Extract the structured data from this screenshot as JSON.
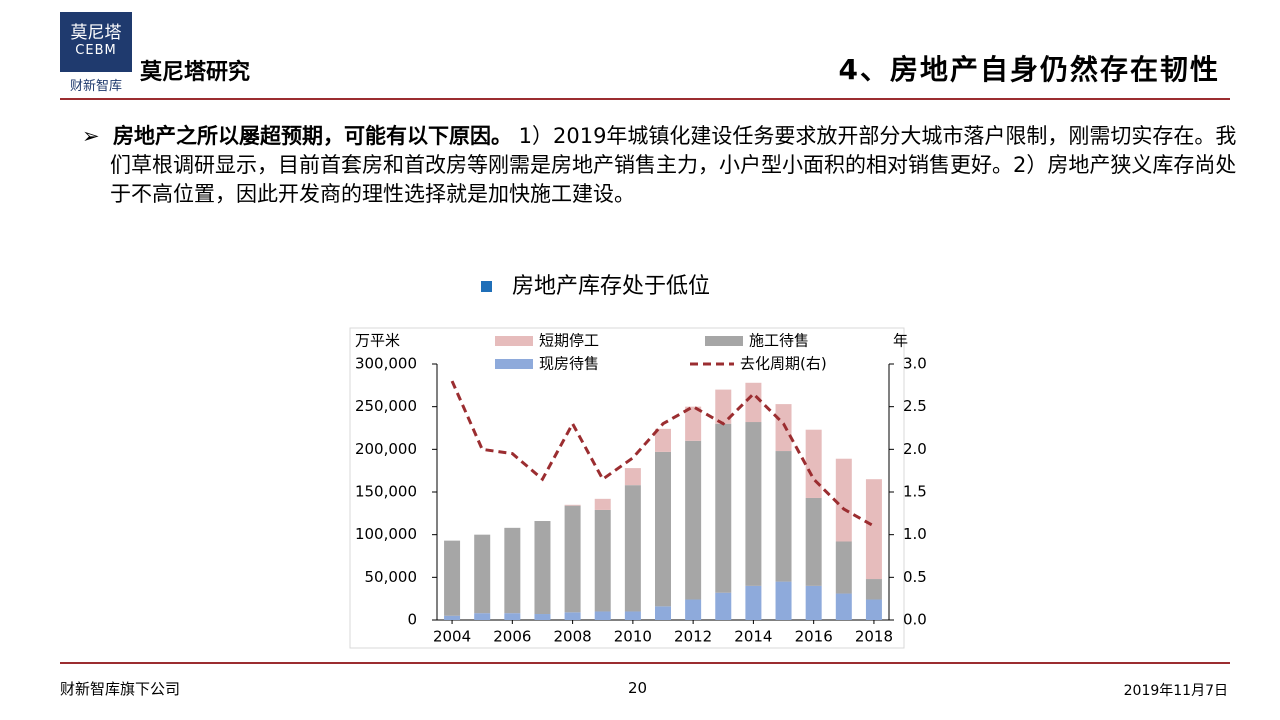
{
  "header": {
    "logo_top": "莫尼塔",
    "logo_mid": "CEBM",
    "logo_bottom": "财新智库",
    "brand": "莫尼塔研究",
    "title": "4、房地产自身仍然存在韧性"
  },
  "body": {
    "lead": "房地产之所以屡超预期，可能有以下原因。",
    "text": " 1）2019年城镇化建设任务要求放开部分大城市落户限制，刚需切实存在。我们草根调研显示，目前首套房和首改房等刚需是房地产销售主力，小户型小面积的相对销售更好。2）房地产狭义库存尚处于不高位置，因此开发商的理性选择就是加快施工建设。"
  },
  "chart_data": {
    "type": "bar",
    "title": "房地产库存处于低位",
    "ylabel": "万平米",
    "y2label": "年",
    "x": [
      2004,
      2005,
      2006,
      2007,
      2008,
      2009,
      2010,
      2011,
      2012,
      2013,
      2014,
      2015,
      2016,
      2017,
      2018
    ],
    "xlim": [
      2003.5,
      2018.5
    ],
    "xticks": [
      2004,
      2006,
      2008,
      2010,
      2012,
      2014,
      2016,
      2018
    ],
    "ylim": [
      0,
      300000
    ],
    "yticks": [
      0,
      {
        "value": 50000,
        "label": "50,000"
      },
      {
        "value": 100000,
        "label": "100,000"
      },
      {
        "value": 150000,
        "label": "150,000"
      },
      {
        "value": 200000,
        "label": "200,000"
      },
      {
        "value": 250000,
        "label": "250,000"
      },
      {
        "value": 300000,
        "label": "300,000"
      }
    ],
    "y2lim": [
      0,
      3
    ],
    "y2ticks": [
      {
        "value": 0,
        "label": "0.0"
      },
      0.5,
      {
        "value": 1,
        "label": "1.0"
      },
      1.5,
      {
        "value": 2,
        "label": "2.0"
      },
      2.5,
      {
        "value": 3,
        "label": "3.0"
      }
    ],
    "series": [
      {
        "name": "现房待售",
        "type": "bar",
        "color": "#8eaadb",
        "values": [
          5000,
          8000,
          8000,
          7000,
          9000,
          10000,
          10000,
          16000,
          24000,
          32000,
          40000,
          45000,
          40000,
          31000,
          24000
        ]
      },
      {
        "name": "施工待售",
        "type": "bar",
        "color": "#a6a6a6",
        "values": [
          88000,
          92000,
          100000,
          109000,
          125000,
          119000,
          148000,
          181000,
          186000,
          198000,
          192000,
          153000,
          103000,
          61000,
          24000
        ]
      },
      {
        "name": "短期停工",
        "type": "bar",
        "color": "#e6bcbc",
        "values": [
          0,
          0,
          0,
          0,
          1000,
          13000,
          20000,
          27000,
          40000,
          40000,
          46000,
          55000,
          80000,
          97000,
          117000
        ]
      },
      {
        "name": "去化周期(右)",
        "type": "line",
        "axis": "y2",
        "color": "#9b2d30",
        "values": [
          2.8,
          2.0,
          1.95,
          1.65,
          2.3,
          1.65,
          1.9,
          2.3,
          2.5,
          2.3,
          2.65,
          2.3,
          1.65,
          1.3,
          1.1
        ]
      }
    ]
  },
  "footer": {
    "left": "财新智库旗下公司",
    "page": "20",
    "date": "2019年11月7日"
  }
}
